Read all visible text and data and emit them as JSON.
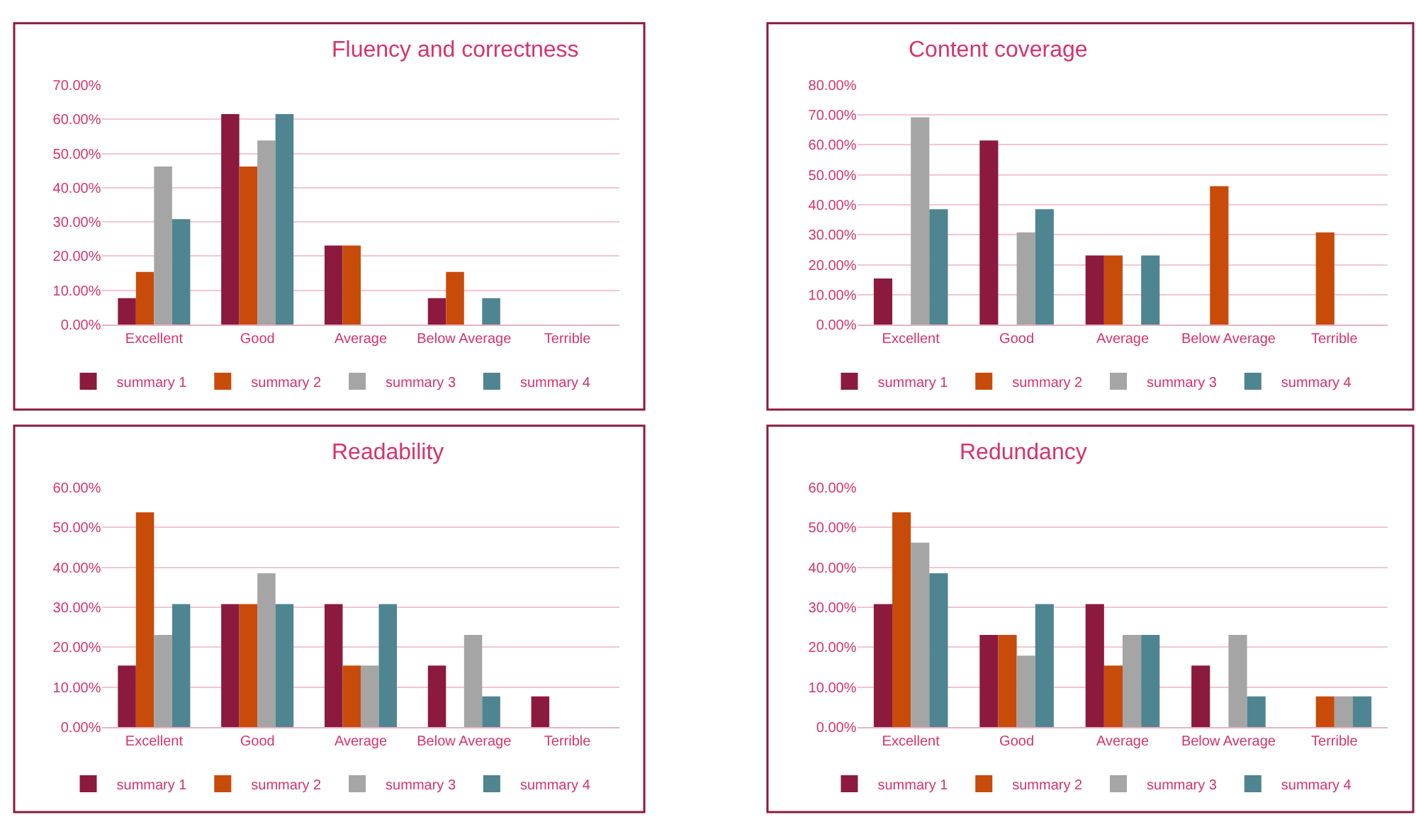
{
  "chart_data": [
    {
      "type": "bar",
      "title": "Fluency and correctness",
      "categories": [
        "Excellent",
        "Good",
        "Average",
        "Below Average",
        "Terrible"
      ],
      "legend": "bottom",
      "grid": "y",
      "ylim": [
        0,
        70
      ],
      "yticks": [
        {
          "value": 0,
          "label": "0.00%"
        },
        {
          "value": 10,
          "label": "10.00%"
        },
        {
          "value": 20,
          "label": "20.00%"
        },
        {
          "value": 30,
          "label": "30.00%"
        },
        {
          "value": 40,
          "label": "40.00%"
        },
        {
          "value": 50,
          "label": "50.00%"
        },
        {
          "value": 60,
          "label": "60.00%"
        },
        {
          "value": 70,
          "label": "70.00%"
        }
      ],
      "series": [
        {
          "name": "summary 1",
          "color": "#8b1a3e",
          "values": [
            7.7,
            61.5,
            23.1,
            7.7,
            0
          ]
        },
        {
          "name": "summary 2",
          "color": "#c84b0a",
          "values": [
            15.4,
            46.2,
            23.1,
            15.4,
            0
          ]
        },
        {
          "name": "summary 3",
          "color": "#a5a5a5",
          "values": [
            46.2,
            53.8,
            0,
            0,
            0
          ]
        },
        {
          "name": "summary 4",
          "color": "#4e8590",
          "values": [
            30.8,
            61.5,
            0,
            7.7,
            0
          ]
        }
      ]
    },
    {
      "type": "bar",
      "title": "Content coverage",
      "categories": [
        "Excellent",
        "Good",
        "Average",
        "Below Average",
        "Terrible"
      ],
      "legend": "bottom",
      "grid": "y",
      "ylim": [
        0,
        80
      ],
      "yticks": [
        {
          "value": 0,
          "label": "0.00%"
        },
        {
          "value": 10,
          "label": "10.00%"
        },
        {
          "value": 20,
          "label": "20.00%"
        },
        {
          "value": 30,
          "label": "30.00%"
        },
        {
          "value": 40,
          "label": "40.00%"
        },
        {
          "value": 50,
          "label": "50.00%"
        },
        {
          "value": 60,
          "label": "60.00%"
        },
        {
          "value": 70,
          "label": "70.00%"
        },
        {
          "value": 80,
          "label": "80.00%"
        }
      ],
      "series": [
        {
          "name": "summary 1",
          "color": "#8b1a3e",
          "values": [
            15.4,
            61.5,
            23.1,
            0,
            0
          ]
        },
        {
          "name": "summary 2",
          "color": "#c84b0a",
          "values": [
            0,
            0,
            23.1,
            46.2,
            30.8
          ]
        },
        {
          "name": "summary 3",
          "color": "#a5a5a5",
          "values": [
            69.2,
            30.8,
            0,
            0,
            0
          ]
        },
        {
          "name": "summary 4",
          "color": "#4e8590",
          "values": [
            38.5,
            38.5,
            23.1,
            0,
            0
          ]
        }
      ]
    },
    {
      "type": "bar",
      "title": "Readability",
      "categories": [
        "Excellent",
        "Good",
        "Average",
        "Below Average",
        "Terrible"
      ],
      "legend": "bottom",
      "grid": "y",
      "ylim": [
        0,
        60
      ],
      "yticks": [
        {
          "value": 0,
          "label": "0.00%"
        },
        {
          "value": 10,
          "label": "10.00%"
        },
        {
          "value": 20,
          "label": "20.00%"
        },
        {
          "value": 30,
          "label": "30.00%"
        },
        {
          "value": 40,
          "label": "40.00%"
        },
        {
          "value": 50,
          "label": "50.00%"
        },
        {
          "value": 60,
          "label": "60.00%"
        }
      ],
      "series": [
        {
          "name": "summary 1",
          "color": "#8b1a3e",
          "values": [
            15.4,
            30.8,
            30.8,
            15.4,
            7.7
          ]
        },
        {
          "name": "summary 2",
          "color": "#c84b0a",
          "values": [
            53.8,
            30.8,
            15.4,
            0,
            0
          ]
        },
        {
          "name": "summary 3",
          "color": "#a5a5a5",
          "values": [
            23.1,
            38.5,
            15.4,
            23.1,
            0
          ]
        },
        {
          "name": "summary 4",
          "color": "#4e8590",
          "values": [
            30.8,
            30.8,
            30.8,
            7.7,
            0
          ]
        }
      ]
    },
    {
      "type": "bar",
      "title": "Redundancy",
      "categories": [
        "Excellent",
        "Good",
        "Average",
        "Below Average",
        "Terrible"
      ],
      "legend": "bottom",
      "grid": "y",
      "ylim": [
        0,
        60
      ],
      "yticks": [
        {
          "value": 0,
          "label": "0.00%"
        },
        {
          "value": 10,
          "label": "10.00%"
        },
        {
          "value": 20,
          "label": "20.00%"
        },
        {
          "value": 30,
          "label": "30.00%"
        },
        {
          "value": 40,
          "label": "40.00%"
        },
        {
          "value": 50,
          "label": "50.00%"
        },
        {
          "value": 60,
          "label": "60.00%"
        }
      ],
      "series": [
        {
          "name": "summary 1",
          "color": "#8b1a3e",
          "values": [
            30.8,
            23.1,
            30.8,
            15.4,
            0
          ]
        },
        {
          "name": "summary 2",
          "color": "#c84b0a",
          "values": [
            53.8,
            23.1,
            15.4,
            0,
            7.7
          ]
        },
        {
          "name": "summary 3",
          "color": "#a5a5a5",
          "values": [
            46.2,
            17.9,
            23.1,
            23.1,
            7.7
          ]
        },
        {
          "name": "summary 4",
          "color": "#4e8590",
          "values": [
            38.5,
            30.8,
            23.1,
            7.7,
            7.7
          ]
        }
      ]
    }
  ]
}
